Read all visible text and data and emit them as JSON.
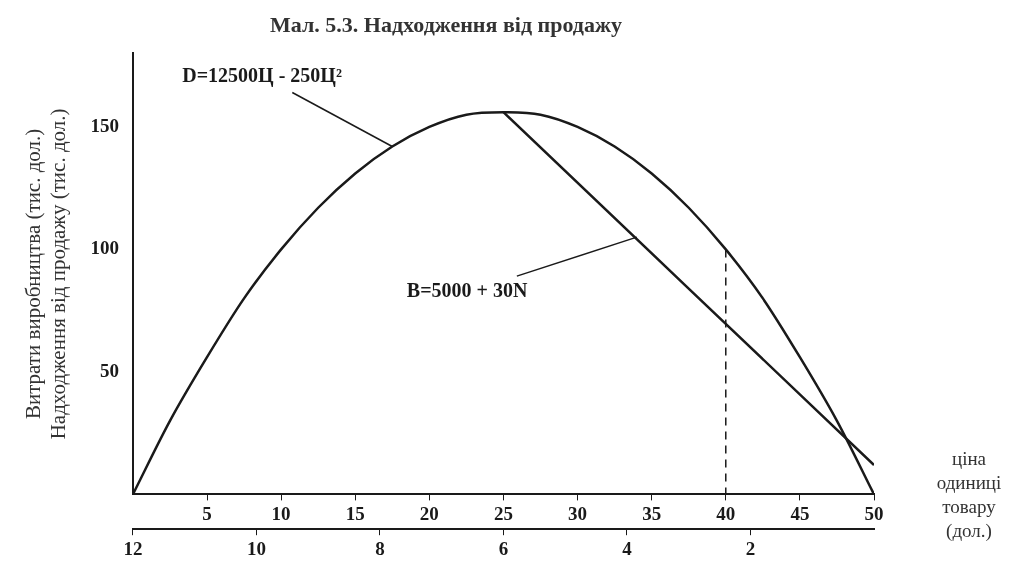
{
  "chart_data": {
    "type": "line",
    "title": "Мал. 5.3. Надходження від продажу",
    "xlabel": "ціна\nодиниці\nтовару\n(дол.)",
    "ylabel": "Витрати виробництва (тис. дол.)\nНадходження від продажу (тис. дол.)",
    "series": [
      {
        "color": "#1a1a1a",
        "x": [
          0,
          2.5,
          5,
          7.5,
          10,
          12.5,
          15,
          17.5,
          20,
          22.5,
          25,
          27.5,
          30,
          32.5,
          35,
          37.5,
          40,
          42.5,
          45,
          47.5,
          50
        ],
        "values": [
          0,
          30,
          56,
          80,
          100,
          117,
          131,
          142,
          150,
          155,
          156,
          155,
          150,
          142,
          131,
          117,
          100,
          80,
          56,
          30,
          0
        ]
      },
      {
        "color": "#1a1a1a",
        "x": [
          25,
          50
        ],
        "values": [
          156,
          12
        ]
      }
    ],
    "xlim": [
      0,
      50
    ],
    "xticks": [
      5,
      10,
      15,
      20,
      25,
      30,
      35,
      40,
      45,
      50
    ],
    "ylim": [
      0,
      180
    ],
    "yticks": [
      50,
      100,
      150
    ],
    "x2lim": [
      12,
      0
    ],
    "x2ticks": [
      12,
      10,
      8,
      6,
      4,
      2
    ],
    "annotations": [
      {
        "text": "D=12500Ц - 250Ц²",
        "x": 17.5,
        "y": 142
      },
      {
        "text": "B=5000 + 30N",
        "x": 34,
        "y": 105
      }
    ],
    "ref_lines": [
      {
        "axis": "x",
        "value": 40,
        "line_style": "dashed"
      }
    ],
    "grid": false,
    "legend": false,
    "marker": "none",
    "line_style": "solid"
  }
}
